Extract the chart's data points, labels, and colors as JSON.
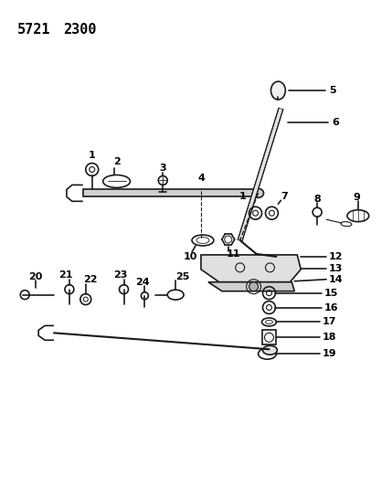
{
  "title_line1": "5721",
  "title_line2": "2300",
  "background_color": "#ffffff",
  "line_color": "#1a1a1a",
  "text_color": "#000000",
  "fig_width": 4.29,
  "fig_height": 5.33,
  "dpi": 100
}
